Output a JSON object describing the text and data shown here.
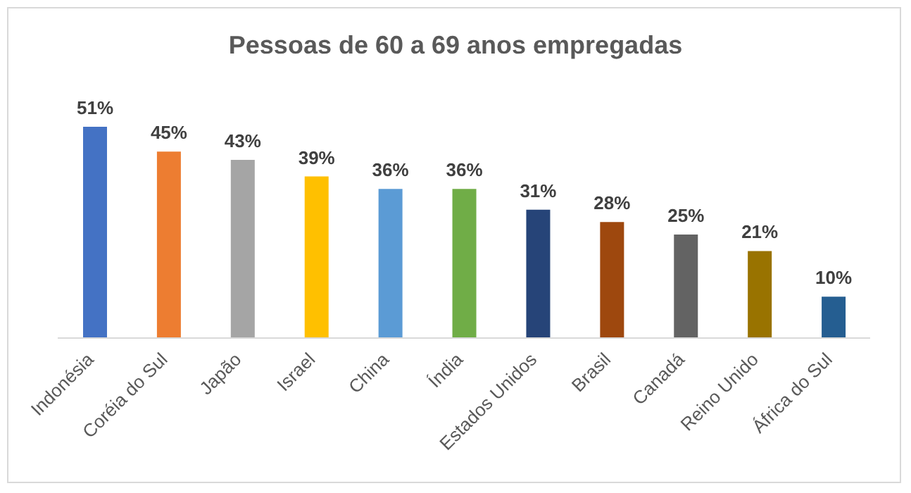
{
  "chart_data": {
    "type": "bar",
    "title": "Pessoas de 60 a 69 anos empregadas",
    "categories": [
      "Indonésia",
      "Coréia do Sul",
      "Japão",
      "Israel",
      "China",
      "Índia",
      "Estados Unidos",
      "Brasil",
      "Canadá",
      "Reino Unido",
      "África do Sul"
    ],
    "values": [
      51,
      45,
      43,
      39,
      36,
      36,
      31,
      28,
      25,
      21,
      10
    ],
    "value_labels": [
      "51%",
      "45%",
      "43%",
      "39%",
      "36%",
      "36%",
      "31%",
      "28%",
      "25%",
      "21%",
      "10%"
    ],
    "colors": [
      "#4472c4",
      "#ed7d31",
      "#a5a5a5",
      "#ffc000",
      "#5b9bd5",
      "#70ad47",
      "#264478",
      "#9e480e",
      "#636363",
      "#997300",
      "#255e91"
    ],
    "grid": false,
    "legend": false
  }
}
